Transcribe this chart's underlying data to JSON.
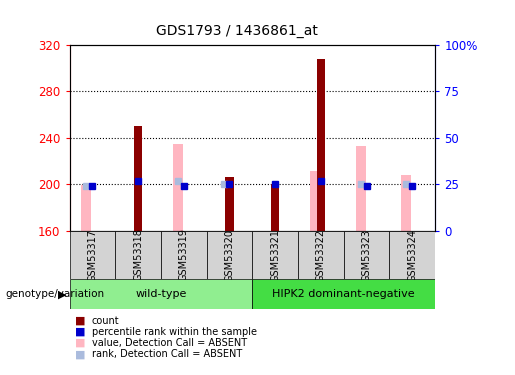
{
  "title": "GDS1793 / 1436861_at",
  "samples": [
    "GSM53317",
    "GSM53318",
    "GSM53319",
    "GSM53320",
    "GSM53321",
    "GSM53322",
    "GSM53323",
    "GSM53324"
  ],
  "count_values": [
    160,
    250,
    160,
    206,
    200,
    308,
    160,
    160
  ],
  "percentile_rank_pct": [
    24,
    27,
    24,
    25,
    25,
    27,
    24,
    24
  ],
  "absent_value": [
    199,
    160,
    235,
    160,
    160,
    211,
    233,
    208
  ],
  "absent_rank_pct": [
    24,
    0,
    27,
    25,
    0,
    0,
    25,
    25
  ],
  "ylim_left": [
    160,
    320
  ],
  "ylim_right": [
    0,
    100
  ],
  "yticks_left": [
    160,
    200,
    240,
    280,
    320
  ],
  "yticks_right": [
    0,
    25,
    50,
    75,
    100
  ],
  "groups": [
    {
      "label": "wild-type",
      "start": 0,
      "end": 4
    },
    {
      "label": "HIPK2 dominant-negative",
      "start": 4,
      "end": 8
    }
  ],
  "group_color_1": "#90EE90",
  "group_color_2": "#44DD44",
  "bar_color_dark_red": "#8B0000",
  "bar_color_pink": "#FFB6C1",
  "bar_color_blue": "#0000CC",
  "bar_color_light_blue": "#AABBDD",
  "genotype_label": "genotype/variation",
  "legend_items": [
    {
      "label": "count",
      "color": "#8B0000"
    },
    {
      "label": "percentile rank within the sample",
      "color": "#0000CC"
    },
    {
      "label": "value, Detection Call = ABSENT",
      "color": "#FFB6C1"
    },
    {
      "label": "rank, Detection Call = ABSENT",
      "color": "#AABBDD"
    }
  ]
}
